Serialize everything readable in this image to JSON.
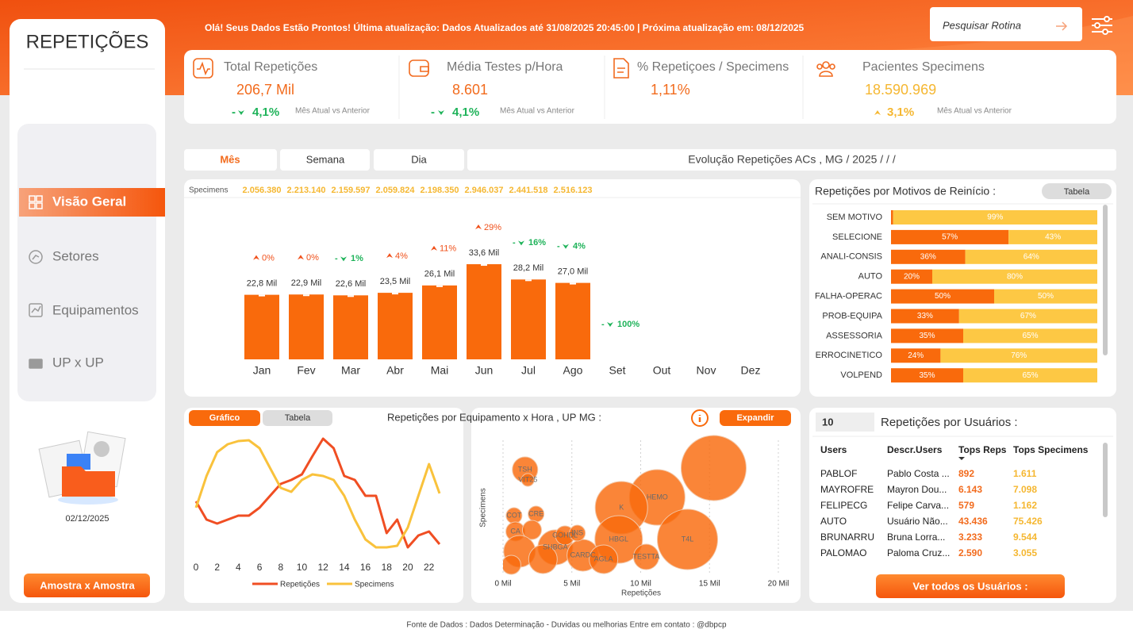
{
  "sidebar": {
    "title": "REPETIÇÕES",
    "nav": [
      "Visão Geral",
      "Setores",
      "Equipamentos",
      "UP x UP"
    ],
    "active": 0,
    "date": "02/12/2025",
    "button": "Amostra x Amostra"
  },
  "header": {
    "message": "Olá! Seus Dados Estão Prontos! Última atualização: Dados Atualizados até 31/08/2025 20:45:00 | Próxima atualização em: 08/12/2025",
    "search_placeholder": "Pesquisar Rotina"
  },
  "kpis": [
    {
      "title": "Total Repetições",
      "value": "206,7 Mil",
      "delta_prefix": "-",
      "delta": "4,1%",
      "delta_direction": "down",
      "delta_note": "Mês Atual vs Anterior"
    },
    {
      "title": "Média Testes p/Hora",
      "value": "8.601",
      "delta_prefix": "-",
      "delta": "4,1%",
      "delta_direction": "down",
      "delta_note": "Mês Atual vs Anterior"
    },
    {
      "title": "% Repetiçoes / Specimens",
      "value": "1,11%"
    },
    {
      "title": "Pacientes Specimens",
      "value": "18.590.969",
      "delta": "3,1%",
      "delta_direction": "up",
      "delta_note": "Mês Atual vs Anterior"
    }
  ],
  "tabs": {
    "items": [
      "Mês",
      "Semana",
      "Dia"
    ],
    "active": 0,
    "title": "Evolução Repetições ACs , MG / 2025 / / /"
  },
  "chart_data": [
    {
      "type": "bar",
      "categories": [
        "Jan",
        "Fev",
        "Mar",
        "Abr",
        "Mai",
        "Jun",
        "Jul",
        "Ago",
        "Set",
        "Out",
        "Nov",
        "Dez"
      ],
      "values": [
        22.8,
        22.9,
        22.6,
        23.5,
        26.1,
        33.6,
        28.2,
        27.0,
        null,
        null,
        null,
        null
      ],
      "value_labels": [
        "22,8 Mil",
        "22,9 Mil",
        "22,6 Mil",
        "23,5 Mil",
        "26,1 Mil",
        "33,6 Mil",
        "28,2 Mil",
        "27,0 Mil",
        null,
        null,
        null,
        null
      ],
      "color": "#f96a0c",
      "changes": [
        "0%",
        "0%",
        "1%",
        "4%",
        "11%",
        "29%",
        "16%",
        "4%",
        "100%",
        null,
        null,
        null
      ],
      "change_directions": [
        "up",
        "up",
        "down",
        "up",
        "up",
        "up",
        "down",
        "down",
        "down",
        null,
        null,
        null
      ],
      "decline_prefix": "-",
      "specimens_title": "Specimens",
      "specimens": [
        "2.056.380",
        "2.213.140",
        "2.159.597",
        "2.059.824",
        "2.198.350",
        "2.946.037",
        "2.441.518",
        "2.516.123",
        null,
        null,
        null,
        null
      ]
    },
    {
      "type": "bar",
      "orientation": "horizontal",
      "stacked": true,
      "title": "Repetições por Motivos de Reinício :",
      "button": "Tabela",
      "categories": [
        "SEM MOTIVO",
        "SELECIONE",
        "ANALI-CONSIS",
        "AUTO",
        "FALHA-OPERAC",
        "PROB-EQUIPA",
        "ASSESSORIA",
        "ERROCINETICO",
        "VOLPEND"
      ],
      "series": [
        {
          "color": "#f96a0c",
          "values": [
            1,
            57,
            36,
            20,
            50,
            33,
            35,
            24,
            35
          ],
          "value_labels": [
            null,
            "57%",
            "36%",
            "20%",
            "50%",
            "33%",
            "35%",
            "24%",
            "35%"
          ]
        },
        {
          "color": "#fdc844",
          "values": [
            99,
            43,
            64,
            80,
            50,
            67,
            65,
            76,
            65
          ],
          "value_labels": [
            "99%",
            "43%",
            "64%",
            "80%",
            "50%",
            "67%",
            "65%",
            "76%",
            "65%"
          ]
        }
      ]
    },
    {
      "type": "line",
      "title": "Repetições por Equipamento x Hora , UP MG :",
      "buttons": [
        "Gráfico",
        "Tabela"
      ],
      "expand_button": "Expandir",
      "x": [
        0,
        1,
        2,
        3,
        4,
        5,
        6,
        7,
        8,
        9,
        10,
        11,
        12,
        13,
        14,
        15,
        16,
        17,
        18,
        19,
        20,
        21,
        22,
        23
      ],
      "xlim": [
        0,
        23
      ],
      "xticks": [
        0,
        2,
        4,
        6,
        8,
        10,
        12,
        14,
        16,
        18,
        20,
        22
      ],
      "series": [
        {
          "name": "Repetições",
          "color": "#f04e23",
          "values": [
            68,
            45,
            40,
            45,
            50,
            50,
            60,
            75,
            90,
            95,
            102,
            125,
            147,
            135,
            100,
            95,
            75,
            75,
            28,
            45,
            10,
            25,
            30,
            14
          ]
        },
        {
          "name": "Specimens",
          "color": "#f9c23c",
          "values": [
            60,
            100,
            130,
            140,
            144,
            145,
            135,
            110,
            85,
            80,
            95,
            102,
            100,
            95,
            75,
            45,
            20,
            10,
            10,
            12,
            35,
            75,
            115,
            78
          ]
        }
      ]
    },
    {
      "type": "scatter",
      "xlabel": "Repetições",
      "ylabel": "Specimens",
      "xlim": [
        0,
        20000
      ],
      "xticks": [
        {
          "value": 0,
          "label": "0 Mil"
        },
        {
          "value": 5000,
          "label": "5 Mil"
        },
        {
          "value": 10000,
          "label": "10 Mil"
        },
        {
          "value": 15000,
          "label": "15 Mil"
        },
        {
          "value": 20000,
          "label": "20 Mil"
        }
      ],
      "x": [
        15300,
        11200,
        13400,
        8600,
        8400,
        10400,
        3800,
        5800,
        7300,
        1600,
        1800,
        4500,
        5400,
        800,
        2400,
        900,
        2100,
        1200,
        2900,
        600
      ],
      "series": [
        {
          "color": "#f96a0c",
          "values": [
            135,
            98,
            45,
            85,
            45,
            23,
            35,
            25,
            20,
            133,
            120,
            50,
            53,
            75,
            77,
            55,
            57,
            30,
            20,
            13
          ],
          "sizes": [
            41,
            35,
            38,
            33,
            30,
            16,
            22,
            20,
            18,
            16,
            8,
            12,
            10,
            10,
            10,
            12,
            12,
            20,
            18,
            12
          ],
          "labels": [
            null,
            "HEMO",
            "T4L",
            "K",
            "HBGL",
            "TESTTA",
            "SHBGA",
            "CARDC",
            "AGLA",
            "TSH",
            "VIT25",
            "GOHDL",
            "INS",
            "COT",
            "CRE",
            "CA",
            null,
            null,
            null,
            null
          ]
        }
      ]
    }
  ],
  "users": {
    "top_n": "10",
    "title": "Repetições por Usuários  :",
    "headers": [
      "Users",
      "Descr.Users",
      "Tops Reps",
      "Tops Specimens"
    ],
    "rows": [
      [
        "PABLOF",
        "Pablo Costa ...",
        "892",
        "1.611"
      ],
      [
        "MAYROFRE",
        "Mayron Dou...",
        "6.143",
        "7.098"
      ],
      [
        "FELIPECG",
        "Felipe Carva...",
        "579",
        "1.162"
      ],
      [
        "AUTO",
        "Usuário Não...",
        "43.436",
        "75.426"
      ],
      [
        "BRUNARRU",
        "Bruna Lorra...",
        "3.233",
        "9.544"
      ],
      [
        "PALOMAO",
        "Paloma Cruz...",
        "2.590",
        "3.055"
      ]
    ],
    "button": "Ver todos os Usuários :"
  },
  "footer": "Fonte de Dados : Dados Determinação   -      Duvidas ou melhorias  Entre em contato : @dbpcp"
}
